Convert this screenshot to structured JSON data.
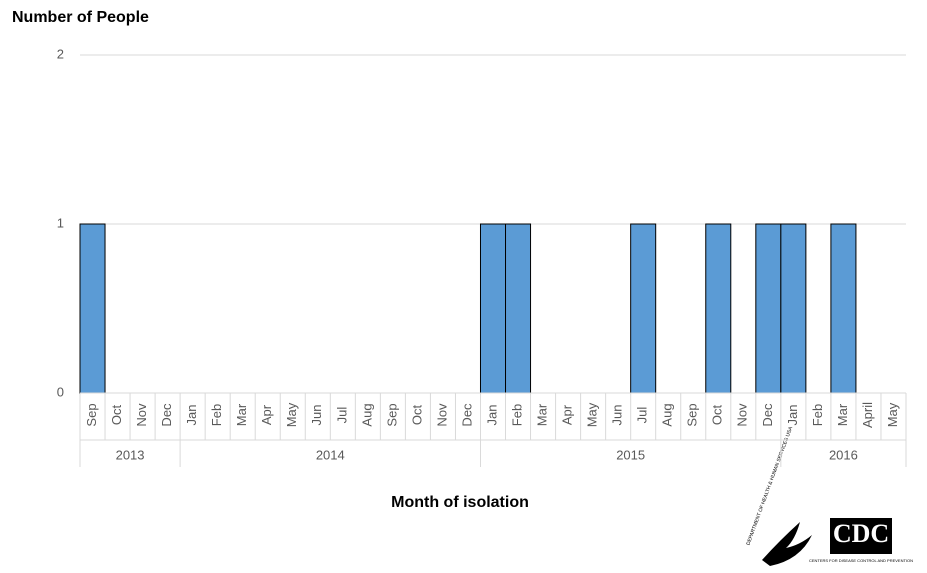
{
  "chart_data": {
    "type": "bar",
    "title": "Number of People",
    "x_label": "Month of isolation",
    "groups": [
      {
        "name": "2013",
        "categories": [
          "Sep",
          "Oct",
          "Nov",
          "Dec"
        ],
        "values": [
          1,
          0,
          0,
          0
        ]
      },
      {
        "name": "2014",
        "categories": [
          "Jan",
          "Feb",
          "Mar",
          "Apr",
          "May",
          "Jun",
          "Jul",
          "Aug",
          "Sep",
          "Oct",
          "Nov",
          "Dec"
        ],
        "values": [
          0,
          0,
          0,
          0,
          0,
          0,
          0,
          0,
          0,
          0,
          0,
          0
        ]
      },
      {
        "name": "2015",
        "categories": [
          "Jan",
          "Feb",
          "Mar",
          "Apr",
          "May",
          "Jun",
          "Jul",
          "Aug",
          "Sep",
          "Oct",
          "Nov",
          "Dec"
        ],
        "values": [
          1,
          1,
          0,
          0,
          0,
          0,
          1,
          0,
          0,
          1,
          0,
          1
        ]
      },
      {
        "name": "2016",
        "categories": [
          "Jan",
          "Feb",
          "Mar",
          "April",
          "May"
        ],
        "values": [
          1,
          0,
          1,
          0,
          0
        ]
      }
    ],
    "color": "#5b9bd5",
    "ylim": [
      0,
      2
    ],
    "yticks": [
      0,
      1,
      2
    ],
    "grid": true
  },
  "logos": {
    "hhs": "DEPARTMENT OF HEALTH & HUMAN SERVICES USA",
    "cdc": "CDC",
    "cdc_caption": "CENTERS FOR DISEASE CONTROL AND PREVENTION"
  }
}
